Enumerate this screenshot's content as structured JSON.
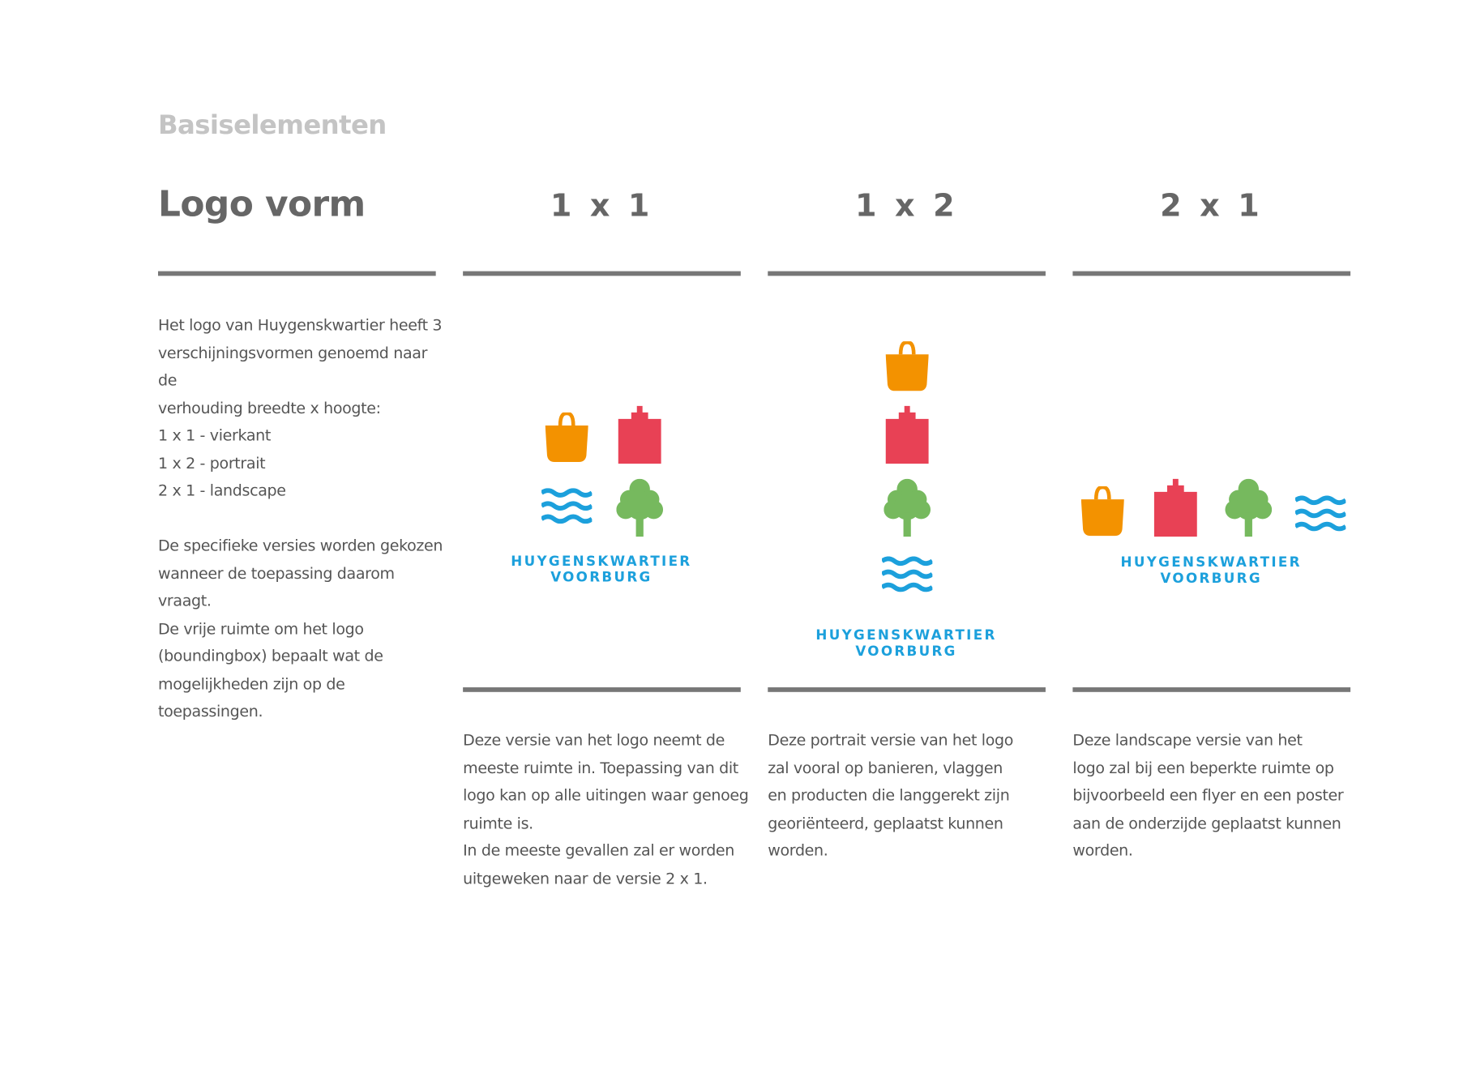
{
  "header": {
    "section": "Basiselementen",
    "title": "Logo vorm"
  },
  "columns": [
    {
      "heading": "1 x 1",
      "description": [
        "Deze versie van het logo neemt de",
        "meeste ruimte in. Toepassing van dit",
        "logo kan op alle uitingen waar genoeg",
        "ruimte is.",
        "In de meeste gevallen zal er worden",
        "uitgeweken naar de versie 2 x 1."
      ]
    },
    {
      "heading": "1 x 2",
      "description": [
        "Deze portrait versie van het logo",
        "zal vooral op banieren,  vlaggen",
        "en producten die langgerekt zijn",
        "georiënteerd, geplaatst  kunnen",
        "worden."
      ]
    },
    {
      "heading": "2 x 1",
      "description": [
        "Deze  landscape versie van het",
        "logo zal bij een beperkte ruimte op",
        "bijvoorbeeld een flyer en een poster",
        "aan de onderzijde geplaatst kunnen",
        "worden."
      ]
    }
  ],
  "intro": {
    "lines": [
      "Het logo van Huygenskwartier heeft 3",
      "verschijningsvormen genoemd naar de",
      "verhouding breedte x hoogte:",
      "1 x 1 - vierkant",
      "1 x 2 - portrait",
      "2 x 1 - landscape"
    ],
    "lines2": [
      "De specifieke versies worden gekozen",
      "wanneer de toepassing daarom vraagt.",
      "De vrije ruimte om het logo",
      "(boundingbox) bepaalt wat de",
      "mogelijkheden zijn op de toepassingen."
    ]
  },
  "logo": {
    "line1": "HUYGENSKWARTIER",
    "line2": "VOORBURG",
    "icons": [
      "shopping-bag-icon",
      "building-icon",
      "tree-icon",
      "waves-icon"
    ],
    "colors": {
      "bag": "#f39200",
      "building": "#e84155",
      "tree": "#76b95e",
      "waves": "#1ca0dc",
      "text": "#1ca0dc"
    }
  }
}
